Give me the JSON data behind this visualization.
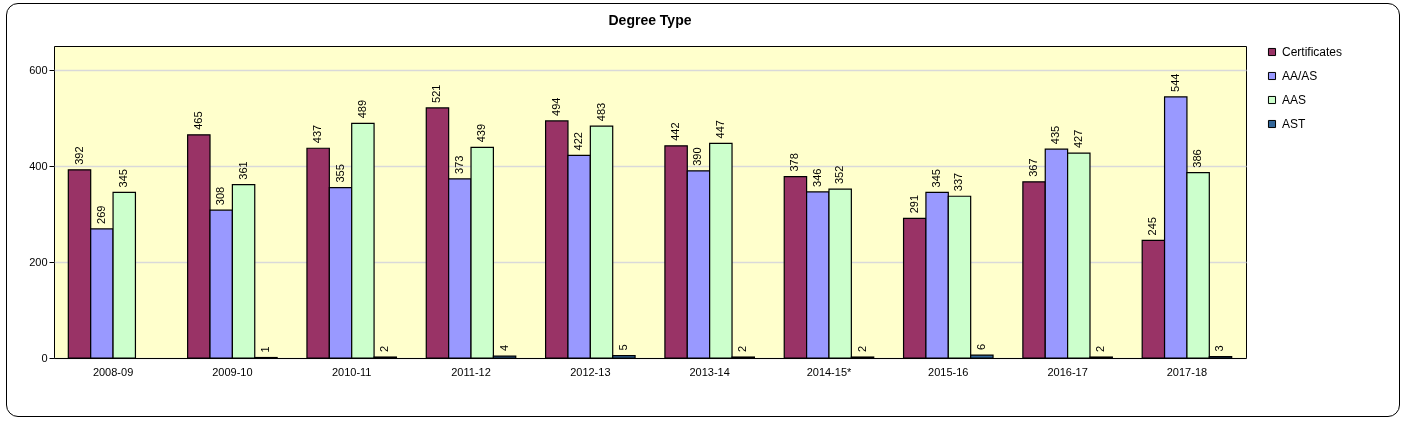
{
  "chart_data": {
    "type": "bar",
    "title": "Degree Type",
    "categories": [
      "2008-09",
      "2009-10",
      "2010-11",
      "2011-12",
      "2012-13",
      "2013-14",
      "2014-15*",
      "2015-16",
      "2016-17",
      "2017-18"
    ],
    "series": [
      {
        "name": "Certificates",
        "color": "#993366",
        "values": [
          392,
          465,
          437,
          521,
          494,
          442,
          378,
          291,
          367,
          245
        ]
      },
      {
        "name": "AA/AS",
        "color": "#9999ff",
        "values": [
          269,
          308,
          355,
          373,
          422,
          390,
          346,
          345,
          435,
          544
        ]
      },
      {
        "name": "AAS",
        "color": "#ccffcc",
        "values": [
          345,
          361,
          489,
          439,
          483,
          447,
          352,
          337,
          427,
          386
        ]
      },
      {
        "name": "AST",
        "color": "#336699",
        "values": [
          null,
          1,
          2,
          4,
          5,
          2,
          2,
          6,
          2,
          3
        ]
      }
    ],
    "ylim": [
      0,
      650
    ],
    "yticks": [
      0,
      200,
      400,
      600
    ],
    "grid": "y",
    "legend": "right",
    "data_labels": true
  }
}
